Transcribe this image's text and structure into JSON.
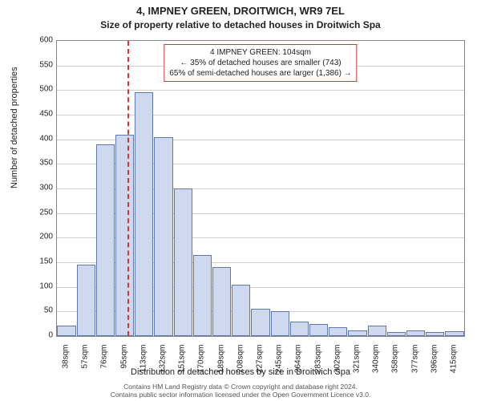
{
  "title_main": "4, IMPNEY GREEN, DROITWICH, WR9 7EL",
  "title_sub": "Size of property relative to detached houses in Droitwich Spa",
  "y_axis_label": "Number of detached properties",
  "x_axis_label": "Distribution of detached houses by size in Droitwich Spa",
  "footer_line1": "Contains HM Land Registry data © Crown copyright and database right 2024.",
  "footer_line2": "Contains public sector information licensed under the Open Government Licence v3.0.",
  "chart": {
    "type": "histogram",
    "background_color": "#ffffff",
    "grid_color": "#d0d0d0",
    "border_color": "#888888",
    "bar_fill": "#ced9f0",
    "bar_border": "#6078b0",
    "ylim": [
      0,
      600
    ],
    "ytick_step": 50,
    "yticks": [
      0,
      50,
      100,
      150,
      200,
      250,
      300,
      350,
      400,
      450,
      500,
      550,
      600
    ],
    "x_labels": [
      "38sqm",
      "57sqm",
      "76sqm",
      "95sqm",
      "113sqm",
      "132sqm",
      "151sqm",
      "170sqm",
      "189sqm",
      "208sqm",
      "227sqm",
      "245sqm",
      "264sqm",
      "283sqm",
      "302sqm",
      "321sqm",
      "340sqm",
      "358sqm",
      "377sqm",
      "396sqm",
      "415sqm"
    ],
    "bar_values": [
      22,
      145,
      390,
      410,
      495,
      405,
      300,
      165,
      140,
      105,
      55,
      50,
      30,
      25,
      18,
      12,
      22,
      8,
      12,
      8,
      10
    ],
    "x_label_fontsize": 10,
    "y_label_fontsize": 10,
    "axis_label_fontsize": 11,
    "title_fontsize_main": 13,
    "title_fontsize_sub": 12,
    "annotation": {
      "line1": "4 IMPNEY GREEN: 104sqm",
      "line2": "← 35% of detached houses are smaller (743)",
      "line3": "65% of semi-detached houses are larger (1,386) →",
      "border_color": "#e03030",
      "background_color": "#ffffff",
      "fontsize": 10
    },
    "marker": {
      "color": "#e03030",
      "style": "dashed",
      "position_index": 3.6,
      "value_sqm": 104
    }
  }
}
